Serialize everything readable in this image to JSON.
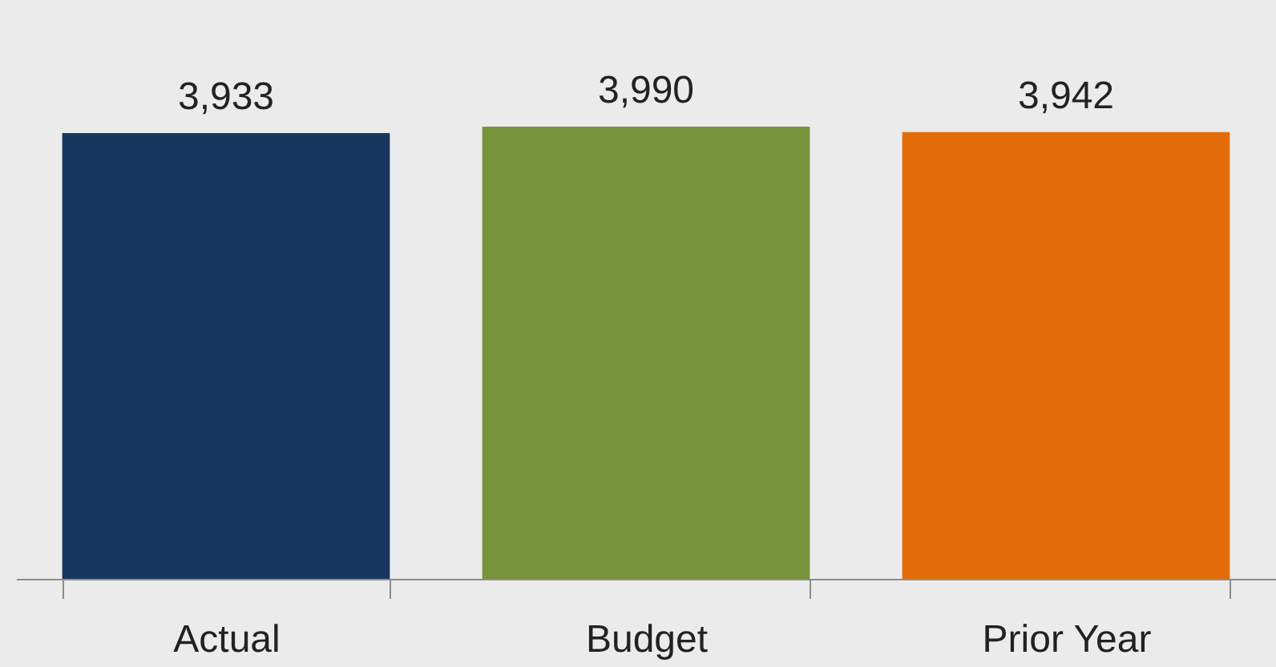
{
  "chart_data": {
    "type": "bar",
    "categories": [
      "Actual",
      "Budget",
      "Prior Year"
    ],
    "values": [
      3933,
      3990,
      3942
    ],
    "value_labels": [
      "3,933",
      "3,990",
      "3,942"
    ],
    "colors": [
      "#17375e",
      "#77933c",
      "#e36c09"
    ],
    "grid": false
  }
}
